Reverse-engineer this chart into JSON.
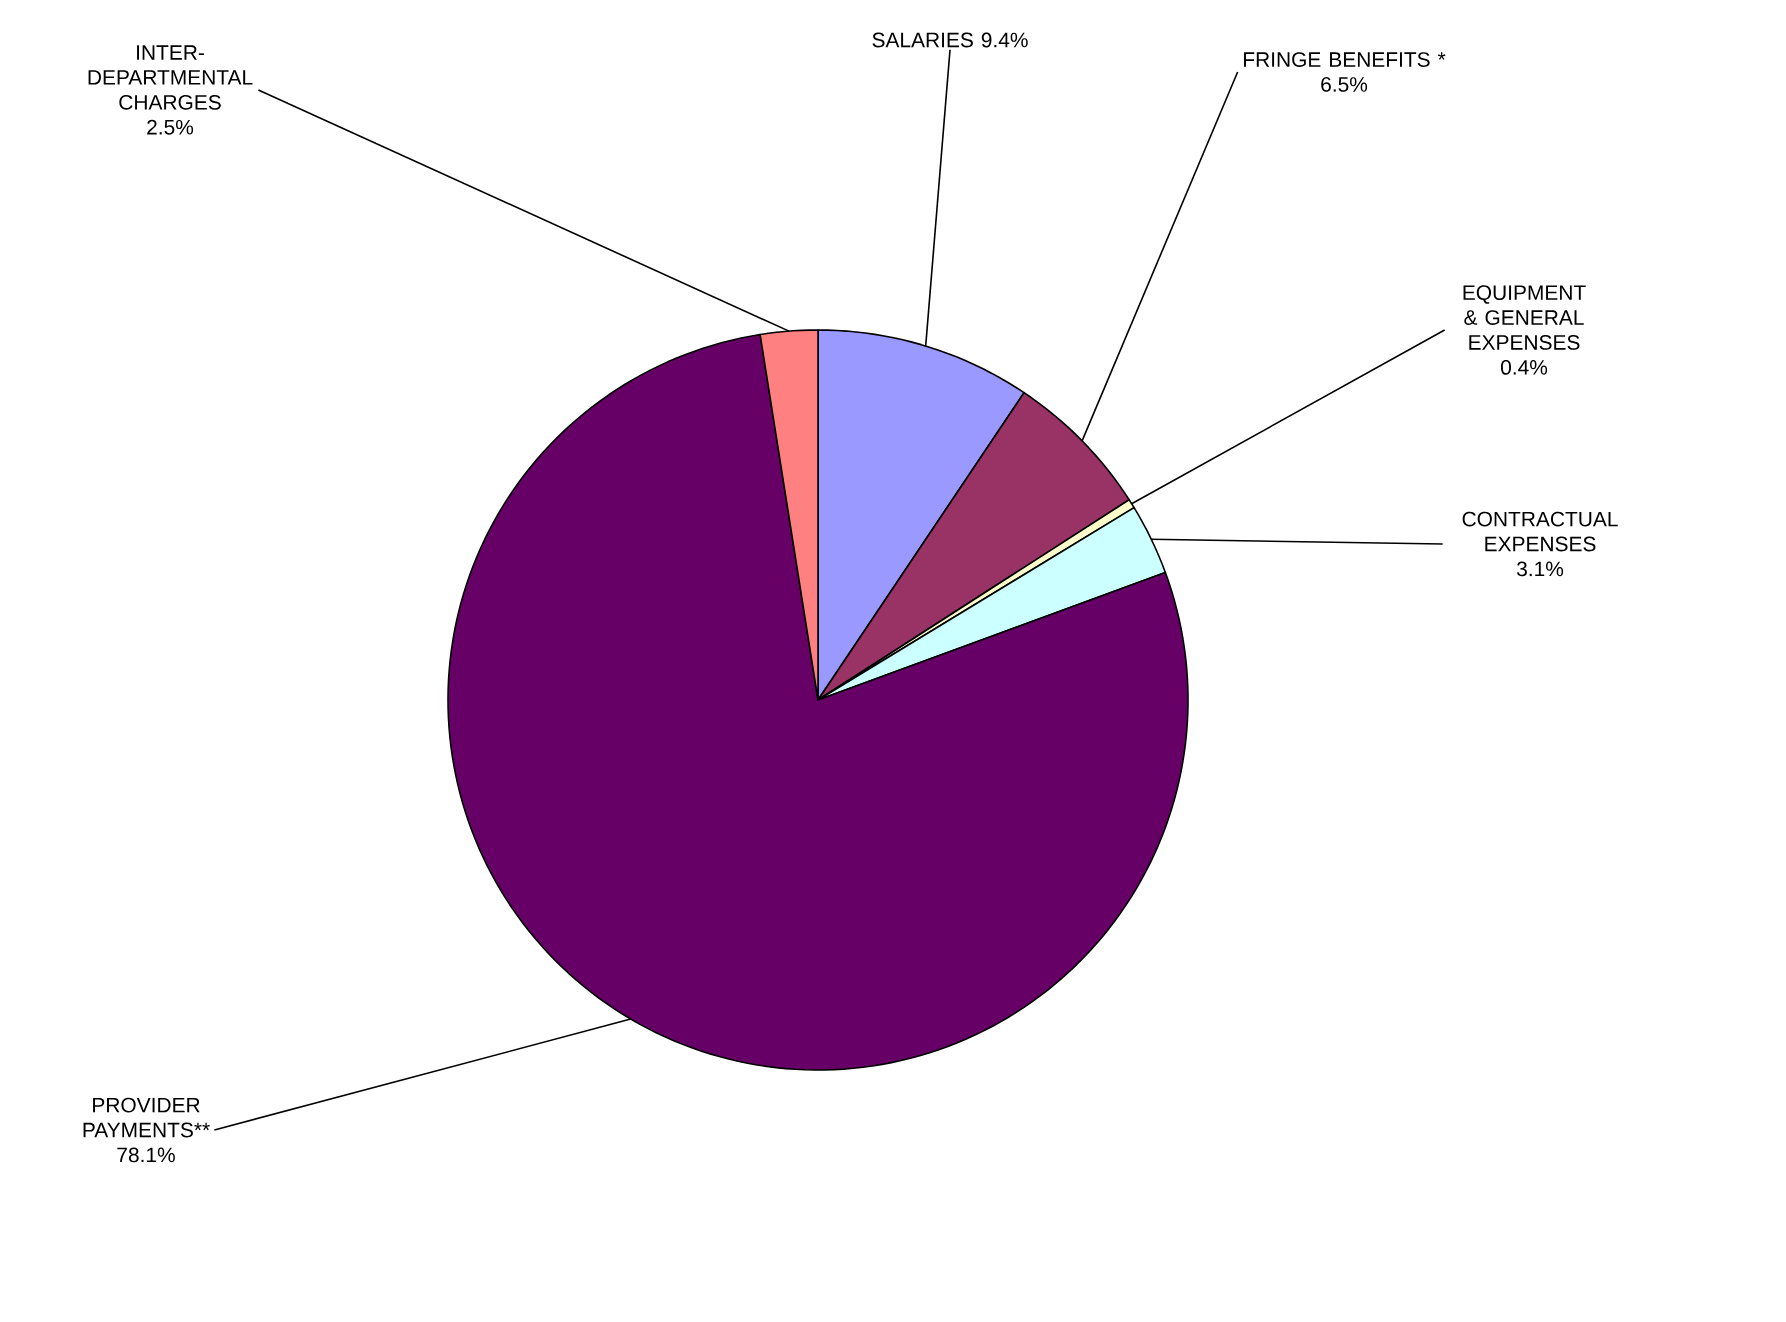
{
  "chart_data": {
    "type": "pie",
    "categories": [
      "SALARIES",
      "FRINGE BENEFITS *",
      "EQUIPMENT & GENERAL EXPENSES",
      "CONTRACTUAL EXPENSES",
      "PROVIDER PAYMENTS**",
      "INTER-DEPARTMENTAL CHARGES"
    ],
    "values": [
      9.4,
      6.5,
      0.4,
      3.1,
      78.1,
      2.5
    ],
    "value_labels": [
      "9.4%",
      "6.5%",
      "0.4%",
      "3.1%",
      "78.1%",
      "2.5%"
    ],
    "colors": [
      "#9999ff",
      "#993366",
      "#ffffcc",
      "#ccffff",
      "#660066",
      "#ff8080"
    ]
  }
}
